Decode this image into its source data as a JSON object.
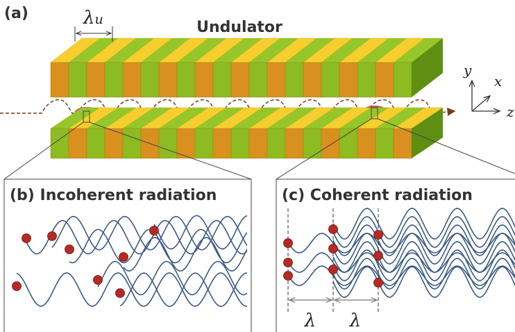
{
  "panel_a": {
    "label": "(a)",
    "title": "Undulator",
    "period_symbol": "λ",
    "period_subscript": "u",
    "axes": {
      "y": "y",
      "x": "x",
      "z": "z"
    }
  },
  "panel_b": {
    "title": "(b) Incoherent radiation"
  },
  "panel_c": {
    "title": "(c) Coherent radiation",
    "spacing_labels": [
      "λ",
      "λ"
    ]
  }
}
